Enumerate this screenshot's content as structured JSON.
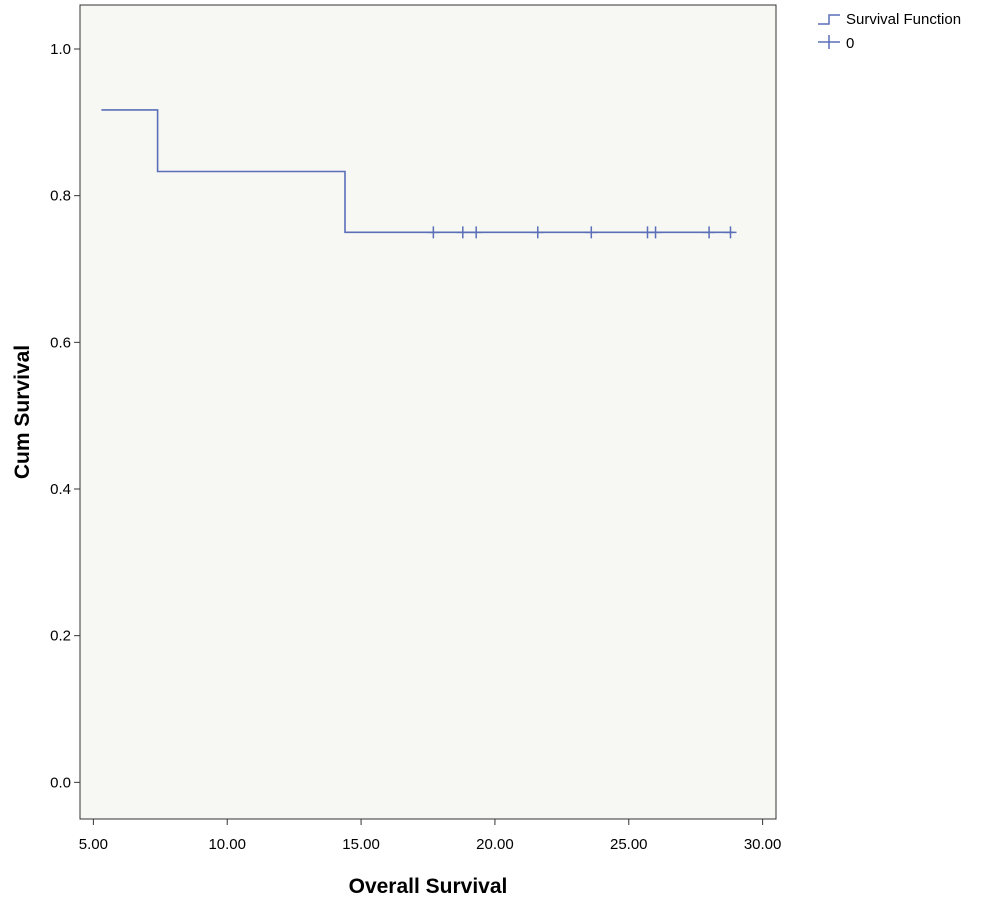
{
  "chart_data": {
    "type": "line",
    "subtype": "kaplan-meier-survival",
    "xlabel": "Overall Survival",
    "ylabel": "Cum Survival",
    "xlim": [
      4.5,
      30.5
    ],
    "ylim": [
      -0.05,
      1.06
    ],
    "x_ticks": [
      5,
      10,
      15,
      20,
      25,
      30
    ],
    "x_tick_labels": [
      "5.00",
      "10.00",
      "15.00",
      "20.00",
      "25.00",
      "30.00"
    ],
    "y_ticks": [
      0,
      0.2,
      0.4,
      0.6,
      0.8,
      1.0
    ],
    "y_tick_labels": [
      "0.0",
      "0.2",
      "0.4",
      "0.6",
      "0.8",
      "1.0"
    ],
    "grid": false,
    "plot_background": "#f7f7f3",
    "legend_position": "top-right-outside",
    "legend": [
      {
        "label": "Survival Function",
        "symbol": "step"
      },
      {
        "label": "0",
        "symbol": "plus"
      }
    ],
    "series": [
      {
        "name": "Survival Function",
        "color": "#5b6fb8",
        "steps": [
          {
            "x": 5.3,
            "y": 0.917
          },
          {
            "x": 7.4,
            "y": 0.833
          },
          {
            "x": 14.4,
            "y": 0.75
          },
          {
            "x": 28.9,
            "y": 0.75
          }
        ]
      },
      {
        "name": "0",
        "color": "#5b6fb8",
        "censored_x": [
          17.7,
          18.8,
          19.3,
          21.6,
          23.6,
          25.7,
          26.0,
          28.0,
          28.8
        ],
        "censored_y": 0.75
      }
    ]
  }
}
